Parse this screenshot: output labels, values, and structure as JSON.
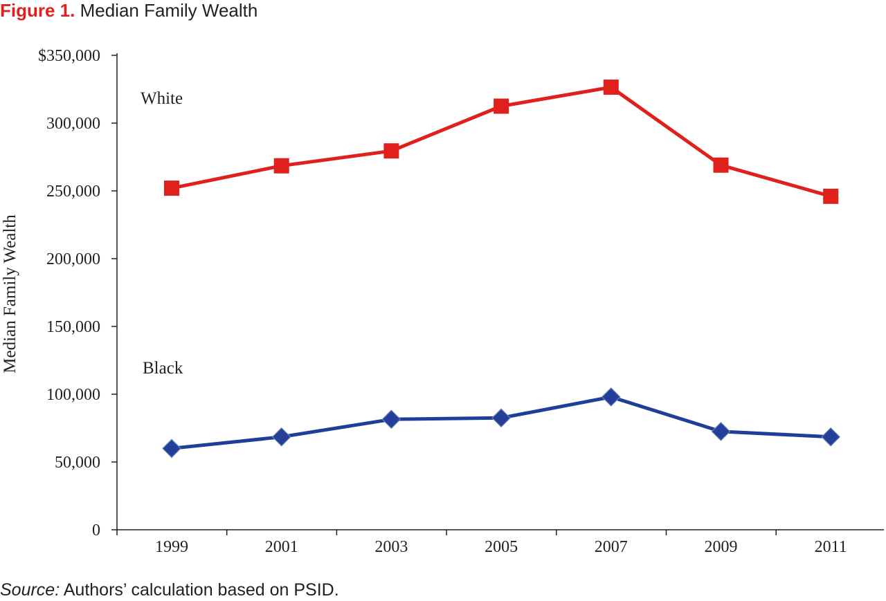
{
  "figure": {
    "label": "Figure 1.",
    "title": "Median Family Wealth"
  },
  "source": {
    "label": "Source:",
    "text": "Authors’ calculation based on PSID."
  },
  "colors": {
    "white_series": "#e0201c",
    "black_series": "#1f3e9a",
    "black_marker": "#233f99",
    "axis": "#231f20"
  },
  "chart_data": {
    "type": "line",
    "ylabel": "Median Family Wealth",
    "xlabel": "",
    "ylim": [
      0,
      350000
    ],
    "yticks": [
      0,
      50000,
      100000,
      150000,
      200000,
      250000,
      300000,
      350000
    ],
    "ytick_labels": [
      "0",
      "50,000",
      "100,000",
      "150,000",
      "200,000",
      "250,000",
      "300,000",
      "$350,000"
    ],
    "categories": [
      "1999",
      "2001",
      "2003",
      "2005",
      "2007",
      "2009",
      "2011"
    ],
    "grid": false,
    "legend": "none",
    "series": [
      {
        "name": "White",
        "marker": "square",
        "values": [
          252000,
          268500,
          279500,
          312500,
          326500,
          269000,
          246000
        ]
      },
      {
        "name": "Black",
        "marker": "diamond",
        "values": [
          60000,
          68500,
          81500,
          82500,
          98000,
          72500,
          68500
        ]
      }
    ]
  }
}
